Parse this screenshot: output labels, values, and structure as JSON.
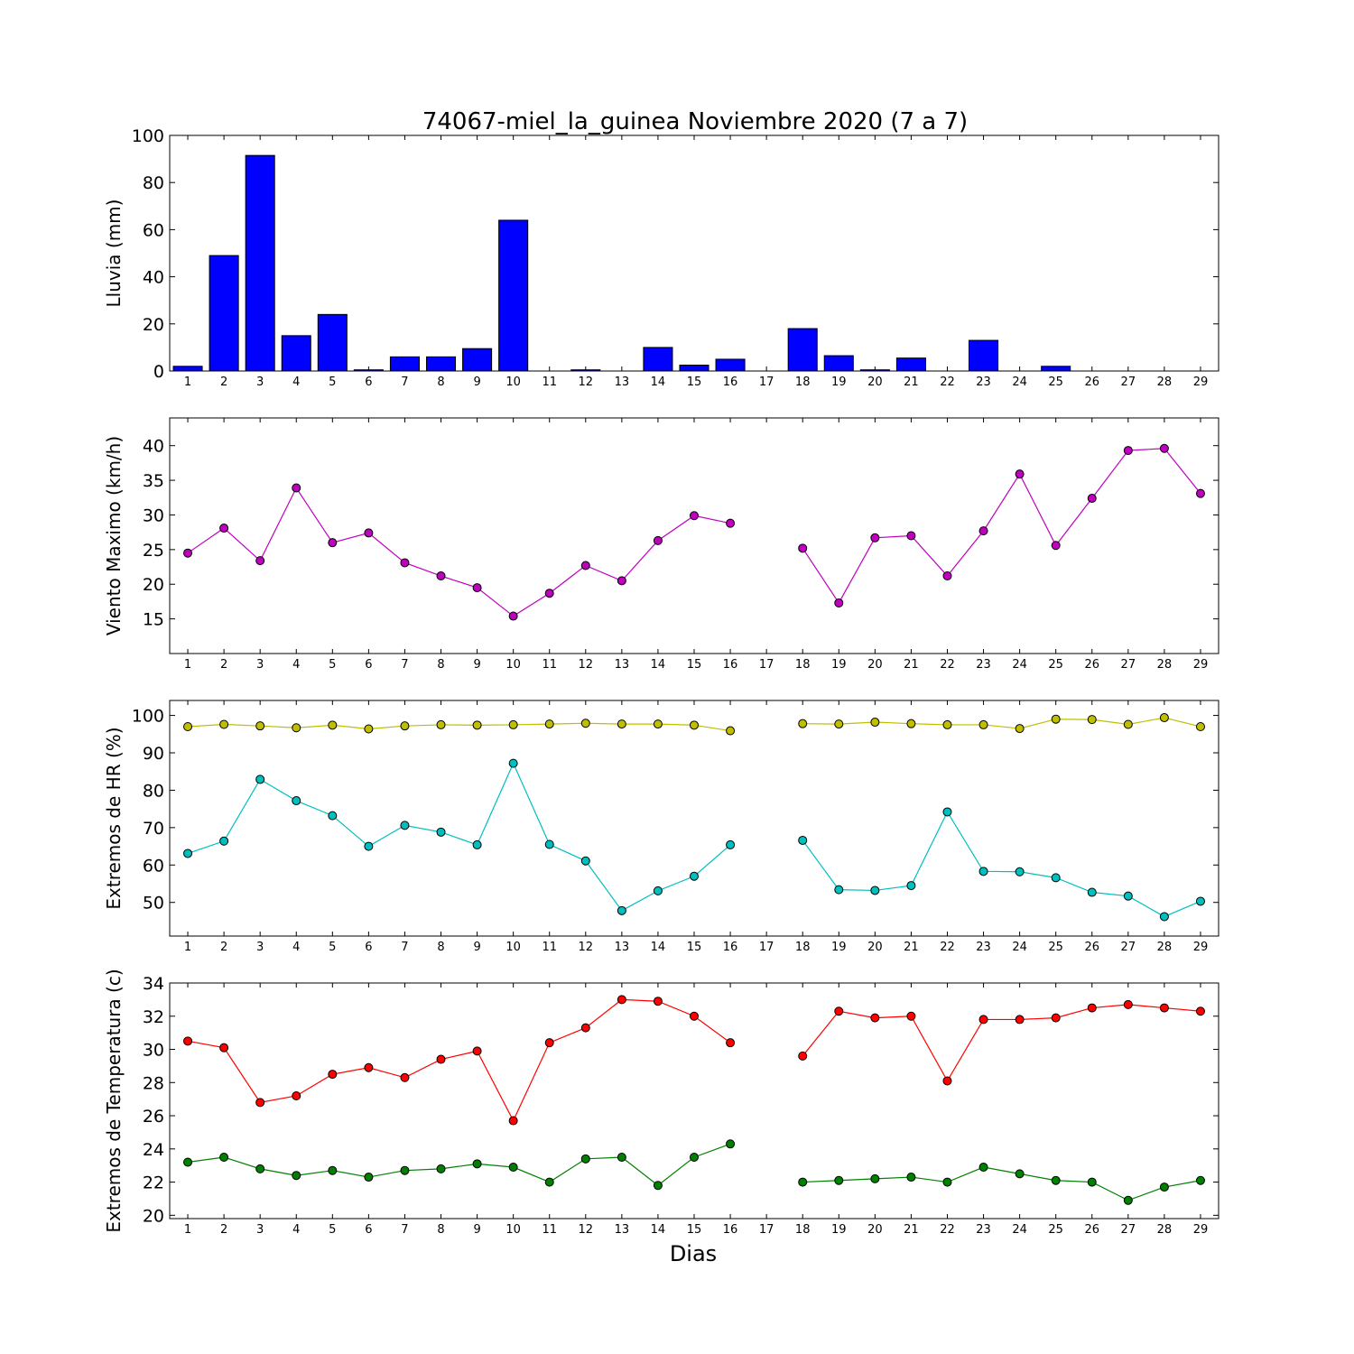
{
  "figure": {
    "title": "74067-miel_la_guinea Noviembre 2020  (7 a 7)",
    "xlabel": "Dias"
  },
  "chart_data": [
    {
      "type": "bar",
      "ylabel": "Lluvia (mm)",
      "ylim": [
        0,
        100
      ],
      "yticks": [
        0,
        20,
        40,
        60,
        80,
        100
      ],
      "categories": [
        "1",
        "2",
        "3",
        "4",
        "5",
        "6",
        "7",
        "8",
        "9",
        "10",
        "11",
        "12",
        "13",
        "14",
        "15",
        "16",
        "17",
        "18",
        "19",
        "20",
        "21",
        "22",
        "23",
        "24",
        "25",
        "26",
        "27",
        "28",
        "29"
      ],
      "values": [
        2,
        49,
        91.5,
        15,
        24,
        0.5,
        6,
        6,
        9.5,
        64,
        0,
        0.5,
        0,
        10,
        2.5,
        5,
        0,
        18,
        6.5,
        0.5,
        5.5,
        0,
        13,
        0,
        2,
        0,
        0,
        0,
        0
      ],
      "color": "#0000ff",
      "grid": false
    },
    {
      "type": "line",
      "ylabel": "Viento Maximo (km/h)",
      "ylim": [
        10,
        44
      ],
      "yticks": [
        15,
        20,
        25,
        30,
        35,
        40
      ],
      "x": [
        1,
        2,
        3,
        4,
        5,
        6,
        7,
        8,
        9,
        10,
        11,
        12,
        13,
        14,
        15,
        16,
        17,
        18,
        19,
        20,
        21,
        22,
        23,
        24,
        25,
        26,
        27,
        28,
        29
      ],
      "series": [
        {
          "color": "#bf00bf",
          "values": [
            24.5,
            28.1,
            23.4,
            33.9,
            26,
            27.4,
            23.1,
            21.2,
            19.5,
            15.4,
            18.7,
            22.7,
            20.5,
            26.3,
            29.9,
            28.8,
            null,
            25.2,
            17.3,
            26.7,
            27,
            21.2,
            27.7,
            35.9,
            25.6,
            32.4,
            39.3,
            39.6,
            33.1
          ]
        }
      ],
      "grid": false
    },
    {
      "type": "line",
      "ylabel": "Extremos de HR (%)",
      "ylim": [
        41,
        104
      ],
      "yticks": [
        50,
        60,
        70,
        80,
        90,
        100
      ],
      "x": [
        1,
        2,
        3,
        4,
        5,
        6,
        7,
        8,
        9,
        10,
        11,
        12,
        13,
        14,
        15,
        16,
        17,
        18,
        19,
        20,
        21,
        22,
        23,
        24,
        25,
        26,
        27,
        28,
        29
      ],
      "series": [
        {
          "color": "#bfbf00",
          "values": [
            97,
            97.6,
            97.2,
            96.7,
            97.4,
            96.4,
            97.2,
            97.5,
            97.4,
            97.5,
            97.7,
            97.9,
            97.7,
            97.7,
            97.4,
            95.9,
            null,
            97.8,
            97.7,
            98.2,
            97.8,
            97.5,
            97.5,
            96.5,
            99,
            98.9,
            97.6,
            99.4,
            97
          ]
        },
        {
          "color": "#00bfbf",
          "values": [
            63.1,
            66.4,
            82.9,
            77.2,
            73.2,
            65,
            70.6,
            68.8,
            65.4,
            87.2,
            65.5,
            61.1,
            47.8,
            53.1,
            57,
            65.4,
            null,
            66.6,
            53.4,
            53.2,
            54.5,
            74.2,
            58.3,
            58.2,
            56.6,
            52.7,
            51.7,
            46.2,
            50.3
          ]
        }
      ],
      "grid": false
    },
    {
      "type": "line",
      "ylabel": "Extremos de Temperatura (c)",
      "ylim": [
        19.8,
        34
      ],
      "yticks": [
        20,
        22,
        24,
        26,
        28,
        30,
        32,
        34
      ],
      "x": [
        1,
        2,
        3,
        4,
        5,
        6,
        7,
        8,
        9,
        10,
        11,
        12,
        13,
        14,
        15,
        16,
        17,
        18,
        19,
        20,
        21,
        22,
        23,
        24,
        25,
        26,
        27,
        28,
        29
      ],
      "series": [
        {
          "color": "#ff0000",
          "values": [
            30.5,
            30.1,
            26.8,
            27.2,
            28.5,
            28.9,
            28.3,
            29.4,
            29.9,
            25.7,
            30.4,
            31.3,
            33,
            32.9,
            32,
            30.4,
            null,
            29.6,
            32.3,
            31.9,
            32,
            28.1,
            31.8,
            31.8,
            31.9,
            32.5,
            32.7,
            32.5,
            32.3
          ]
        },
        {
          "color": "#008000",
          "values": [
            23.2,
            23.5,
            22.8,
            22.4,
            22.7,
            22.3,
            22.7,
            22.8,
            23.1,
            22.9,
            22,
            23.4,
            23.5,
            21.8,
            23.5,
            24.3,
            null,
            22,
            22.1,
            22.2,
            22.3,
            22,
            22.9,
            22.5,
            22.1,
            22,
            20.9,
            21.7,
            22.1
          ]
        }
      ],
      "grid": false
    }
  ]
}
